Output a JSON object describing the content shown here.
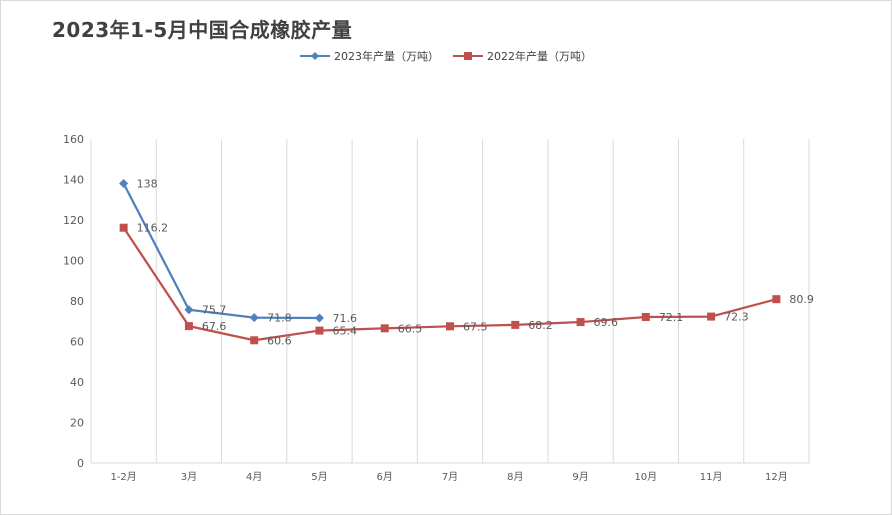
{
  "title": "2023年1-5月中国合成橡胶产量",
  "colors": {
    "series_2023": "#4f81bd",
    "series_2022": "#c0504d",
    "grid": "#d9d9d9",
    "axis_text": "#595959"
  },
  "chart_data": {
    "type": "line",
    "title": "2023年1-5月中国合成橡胶产量",
    "categories": [
      "1-2月",
      "3月",
      "4月",
      "5月",
      "6月",
      "7月",
      "8月",
      "9月",
      "10月",
      "11月",
      "12月"
    ],
    "ylim": [
      0,
      160
    ],
    "yticks": [
      0,
      20,
      40,
      60,
      80,
      100,
      120,
      140,
      160
    ],
    "grid": "vertical",
    "legend_position": "top",
    "series": [
      {
        "name": "2023年产量（万吨）",
        "marker": "diamond",
        "values": [
          138,
          75.7,
          71.8,
          71.6,
          null,
          null,
          null,
          null,
          null,
          null,
          null
        ],
        "labels": [
          "138",
          "75.7",
          "71.8",
          "71.6"
        ]
      },
      {
        "name": "2022年产量（万吨）",
        "marker": "square",
        "values": [
          116.2,
          67.6,
          60.6,
          65.4,
          66.5,
          67.5,
          68.2,
          69.6,
          72.1,
          72.3,
          80.9
        ],
        "labels": [
          "116.2",
          "67.6",
          "60.6",
          "65.4",
          "66.5",
          "67.5",
          "68.2",
          "69.6",
          "72.1",
          "72.3",
          "80.9"
        ]
      }
    ]
  }
}
